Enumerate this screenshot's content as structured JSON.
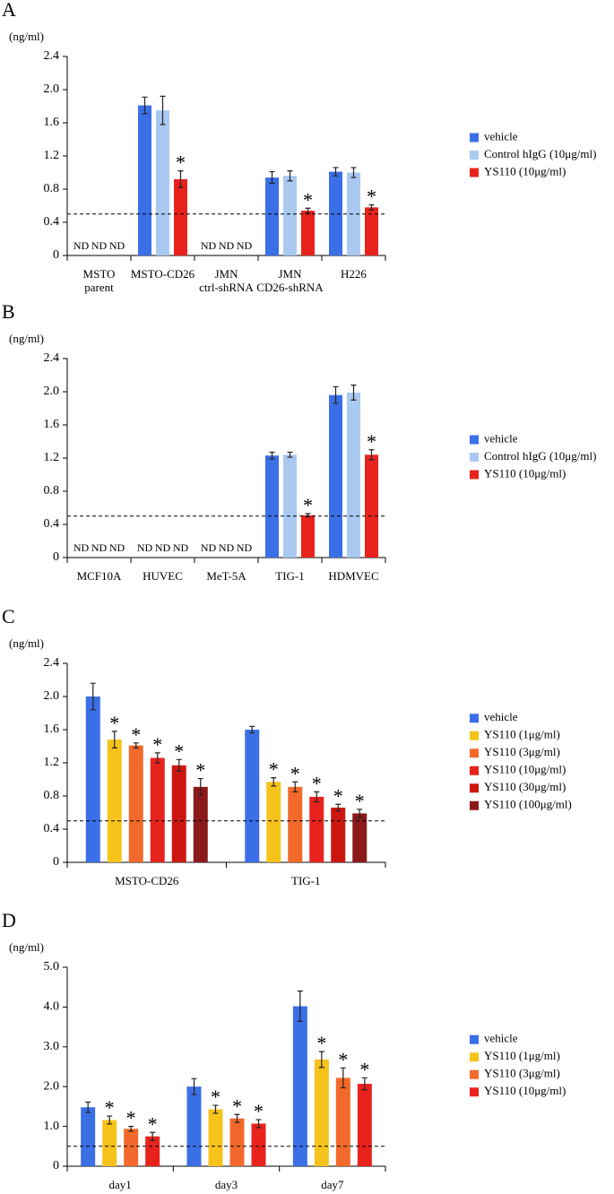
{
  "chart_data": [
    {
      "type": "bar",
      "panel_label": "A",
      "y_unit": "(ng/ml)",
      "categories": [
        [
          "MSTO",
          "parent"
        ],
        [
          "MSTO-CD26"
        ],
        [
          "JMN",
          "ctrl-shRNA"
        ],
        [
          "JMN",
          "CD26-shRNA"
        ],
        [
          "H226"
        ]
      ],
      "ylim": [
        0,
        2.4
      ],
      "yticks": [
        0,
        0.4,
        0.8,
        1.2,
        1.6,
        {
          "value": 2,
          "label": "2.0"
        },
        2.4
      ],
      "reference_line": 0.5,
      "series": [
        {
          "name": "vehicle",
          "color": "#3a6fe6",
          "values": [
            null,
            1.81,
            null,
            0.94,
            1.01
          ],
          "errors": [
            null,
            0.1,
            null,
            0.07,
            0.05
          ],
          "value_labels": [
            "ND",
            null,
            "ND",
            null,
            null
          ],
          "annotations": [
            null,
            null,
            null,
            null,
            null
          ]
        },
        {
          "name": "Control hIgG (10μg/ml)",
          "color": "#a9c9f1",
          "values": [
            null,
            1.75,
            null,
            0.96,
            1.0
          ],
          "errors": [
            null,
            0.17,
            null,
            0.06,
            0.06
          ],
          "value_labels": [
            "ND",
            null,
            "ND",
            null,
            null
          ],
          "annotations": [
            null,
            null,
            null,
            null,
            null
          ]
        },
        {
          "name": "YS110 (10μg/ml)",
          "color": "#e8231e",
          "values": [
            null,
            0.92,
            null,
            0.54,
            0.58
          ],
          "errors": [
            null,
            0.1,
            null,
            0.03,
            0.03
          ],
          "value_labels": [
            "ND",
            null,
            "ND",
            null,
            null
          ],
          "annotations": [
            null,
            "*",
            null,
            "*",
            "*"
          ]
        }
      ]
    },
    {
      "type": "bar",
      "panel_label": "B",
      "y_unit": "(ng/ml)",
      "categories": [
        [
          "MCF10A"
        ],
        [
          "HUVEC"
        ],
        [
          "MeT-5A"
        ],
        [
          "TIG-1"
        ],
        [
          "HDMVEC"
        ]
      ],
      "ylim": [
        0,
        2.4
      ],
      "yticks": [
        0,
        0.4,
        0.8,
        1.2,
        1.6,
        {
          "value": 2,
          "label": "2.0"
        },
        2.4
      ],
      "reference_line": 0.5,
      "series": [
        {
          "name": "vehicle",
          "color": "#3a6fe6",
          "values": [
            null,
            null,
            null,
            1.23,
            1.96
          ],
          "errors": [
            null,
            null,
            null,
            0.04,
            0.1
          ],
          "value_labels": [
            "ND",
            "ND",
            "ND",
            null,
            null
          ],
          "annotations": [
            null,
            null,
            null,
            null,
            null
          ]
        },
        {
          "name": "Control hIgG (10μg/ml)",
          "color": "#a9c9f1",
          "values": [
            null,
            null,
            null,
            1.24,
            1.99
          ],
          "errors": [
            null,
            null,
            null,
            0.03,
            0.09
          ],
          "value_labels": [
            "ND",
            "ND",
            "ND",
            null,
            null
          ],
          "annotations": [
            null,
            null,
            null,
            null,
            null
          ]
        },
        {
          "name": "YS110 (10μg/ml)",
          "color": "#e8231e",
          "values": [
            null,
            null,
            null,
            0.51,
            1.24
          ],
          "errors": [
            null,
            null,
            null,
            0.02,
            0.06
          ],
          "value_labels": [
            "ND",
            "ND",
            "ND",
            null,
            null
          ],
          "annotations": [
            null,
            null,
            null,
            "*",
            "*"
          ]
        }
      ]
    },
    {
      "type": "bar",
      "panel_label": "C",
      "y_unit": "(ng/ml)",
      "categories": [
        [
          "MSTO-CD26"
        ],
        [
          "TIG-1"
        ]
      ],
      "ylim": [
        0,
        2.4
      ],
      "yticks": [
        0,
        0.4,
        0.8,
        1.2,
        1.6,
        {
          "value": 2,
          "label": "2.0"
        },
        2.4
      ],
      "reference_line": 0.5,
      "series": [
        {
          "name": "vehicle",
          "color": "#3a6fe6",
          "values": [
            2.0,
            1.6
          ],
          "errors": [
            0.16,
            0.04
          ],
          "annotations": [
            null,
            null
          ]
        },
        {
          "name": "YS110 (1μg/ml)",
          "color": "#f6c31b",
          "values": [
            1.48,
            0.97
          ],
          "errors": [
            0.1,
            0.05
          ],
          "annotations": [
            "*",
            "*"
          ]
        },
        {
          "name": "YS110 (3μg/ml)",
          "color": "#f26a2b",
          "values": [
            1.41,
            0.91
          ],
          "errors": [
            0.03,
            0.06
          ],
          "annotations": [
            "*",
            "*"
          ]
        },
        {
          "name": "YS110 (10μg/ml)",
          "color": "#e8231e",
          "values": [
            1.26,
            0.79
          ],
          "errors": [
            0.06,
            0.06
          ],
          "annotations": [
            "*",
            "*"
          ]
        },
        {
          "name": "YS110 (30μg/ml)",
          "color": "#cc1710",
          "values": [
            1.17,
            0.66
          ],
          "errors": [
            0.07,
            0.04
          ],
          "annotations": [
            "*",
            "*"
          ]
        },
        {
          "name": "YS110 (100μg/ml)",
          "color": "#8c1a1a",
          "values": [
            0.91,
            0.59
          ],
          "errors": [
            0.1,
            0.05
          ],
          "annotations": [
            "*",
            "*"
          ]
        }
      ]
    },
    {
      "type": "bar",
      "panel_label": "D",
      "y_unit": "(ng/ml)",
      "categories": [
        [
          "day1"
        ],
        [
          "day3"
        ],
        [
          "day7"
        ]
      ],
      "ylim": [
        0,
        5
      ],
      "yticks": [
        0,
        {
          "value": 1,
          "label": "1.0"
        },
        {
          "value": 2,
          "label": "2.0"
        },
        {
          "value": 3,
          "label": "3.0"
        },
        {
          "value": 4,
          "label": "4.0"
        },
        {
          "value": 5,
          "label": "5.0"
        }
      ],
      "reference_line": 0.5,
      "series": [
        {
          "name": "vehicle",
          "color": "#3a6fe6",
          "values": [
            1.48,
            2.0,
            4.02
          ],
          "errors": [
            0.13,
            0.2,
            0.38
          ],
          "annotations": [
            null,
            null,
            null
          ]
        },
        {
          "name": "YS110 (1μg/ml)",
          "color": "#f6c31b",
          "values": [
            1.16,
            1.43,
            2.68
          ],
          "errors": [
            0.1,
            0.1,
            0.2
          ],
          "annotations": [
            "*",
            "*",
            "*"
          ]
        },
        {
          "name": "YS110 (3μg/ml)",
          "color": "#f26a2b",
          "values": [
            0.94,
            1.2,
            2.22
          ],
          "errors": [
            0.06,
            0.1,
            0.25
          ],
          "annotations": [
            "*",
            "*",
            "*"
          ]
        },
        {
          "name": "YS110 (10μg/ml)",
          "color": "#e8231e",
          "values": [
            0.75,
            1.07,
            2.07
          ],
          "errors": [
            0.1,
            0.1,
            0.15
          ],
          "annotations": [
            "*",
            "*",
            "*"
          ]
        }
      ]
    }
  ]
}
